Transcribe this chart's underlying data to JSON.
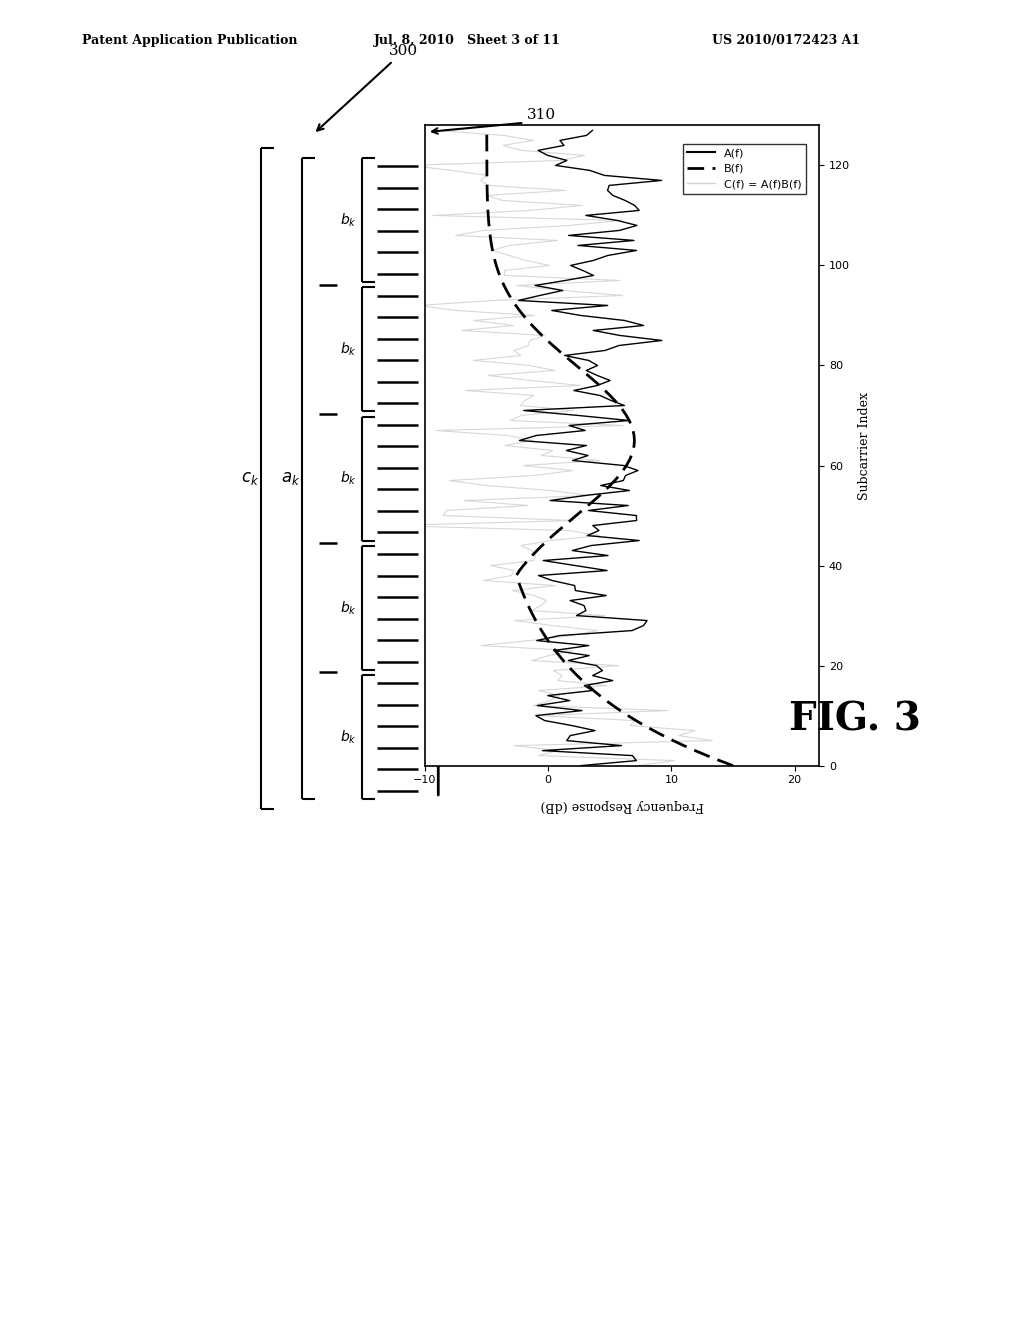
{
  "header_left": "Patent Application Publication",
  "header_mid": "Jul. 8, 2010   Sheet 3 of 11",
  "header_right": "US 2010/0172423 A1",
  "fig_label": "FIG. 3",
  "label_300": "300",
  "label_310": "310",
  "legend_labels": [
    "A(f)",
    "B(f)",
    "C(f) = A(f)B(f)"
  ],
  "background_color": "#ffffff",
  "plot_xlim": [
    -10,
    22
  ],
  "plot_ylim": [
    0,
    128
  ],
  "plot_xticks": [
    -10,
    0,
    10,
    20
  ],
  "plot_yticks": [
    0,
    20,
    40,
    60,
    80,
    100,
    120
  ],
  "plot_xlabel_rotated": "Frequency Response (dB)",
  "plot_ylabel": "Subcarrier Index"
}
